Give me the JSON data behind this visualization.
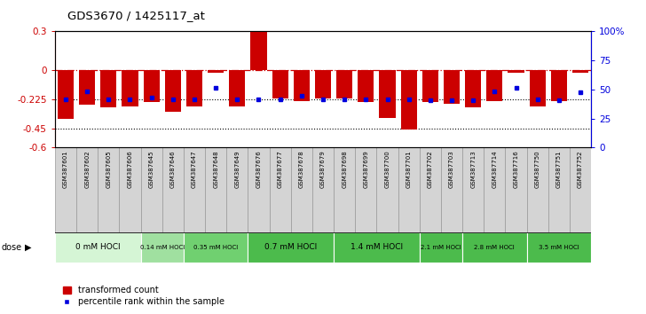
{
  "title": "GDS3670 / 1425117_at",
  "samples": [
    "GSM387601",
    "GSM387602",
    "GSM387605",
    "GSM387606",
    "GSM387645",
    "GSM387646",
    "GSM387647",
    "GSM387648",
    "GSM387649",
    "GSM387676",
    "GSM387677",
    "GSM387678",
    "GSM387679",
    "GSM387698",
    "GSM387699",
    "GSM387700",
    "GSM387701",
    "GSM387702",
    "GSM387703",
    "GSM387713",
    "GSM387714",
    "GSM387716",
    "GSM387750",
    "GSM387751",
    "GSM387752"
  ],
  "bar_values": [
    -0.38,
    -0.27,
    -0.29,
    -0.28,
    -0.25,
    -0.32,
    -0.28,
    -0.02,
    -0.28,
    0.3,
    -0.22,
    -0.24,
    -0.22,
    -0.22,
    -0.25,
    -0.37,
    -0.46,
    -0.25,
    -0.26,
    -0.29,
    -0.24,
    -0.02,
    -0.28,
    -0.24,
    -0.02
  ],
  "percentile_values": [
    -0.225,
    -0.165,
    -0.225,
    -0.225,
    -0.21,
    -0.225,
    -0.225,
    -0.14,
    -0.225,
    -0.225,
    -0.225,
    -0.2,
    -0.225,
    -0.225,
    -0.225,
    -0.225,
    -0.225,
    -0.235,
    -0.235,
    -0.235,
    -0.165,
    -0.14,
    -0.225,
    -0.235,
    -0.17
  ],
  "dose_groups": [
    {
      "label": "0 mM HOCl",
      "start": 0,
      "end": 4,
      "color": "#d5f5d5"
    },
    {
      "label": "0.14 mM HOCl",
      "start": 4,
      "end": 6,
      "color": "#a0e0a0"
    },
    {
      "label": "0.35 mM HOCl",
      "start": 6,
      "end": 9,
      "color": "#70d070"
    },
    {
      "label": "0.7 mM HOCl",
      "start": 9,
      "end": 13,
      "color": "#4cbb4c"
    },
    {
      "label": "1.4 mM HOCl",
      "start": 13,
      "end": 17,
      "color": "#4cbb4c"
    },
    {
      "label": "2.1 mM HOCl",
      "start": 17,
      "end": 19,
      "color": "#4cbb4c"
    },
    {
      "label": "2.8 mM HOCl",
      "start": 19,
      "end": 22,
      "color": "#4cbb4c"
    },
    {
      "label": "3.5 mM HOCl",
      "start": 22,
      "end": 25,
      "color": "#4cbb4c"
    }
  ],
  "ylim": [
    -0.6,
    0.3
  ],
  "yticks": [
    0.3,
    0.0,
    -0.225,
    -0.45,
    -0.6
  ],
  "ytick_labels": [
    "0.3",
    "0",
    "-0.225",
    "-0.45",
    "-0.6"
  ],
  "right_ytick_pcts": [
    100,
    75,
    50,
    25,
    0
  ],
  "right_ytick_labels": [
    "100%",
    "75",
    "50",
    "25",
    "0"
  ],
  "hline_dashed": 0.0,
  "hline_dotted1": -0.225,
  "hline_dotted2": -0.45,
  "bar_color": "#cc0000",
  "percentile_color": "#0000dd",
  "background_color": "#ffffff"
}
